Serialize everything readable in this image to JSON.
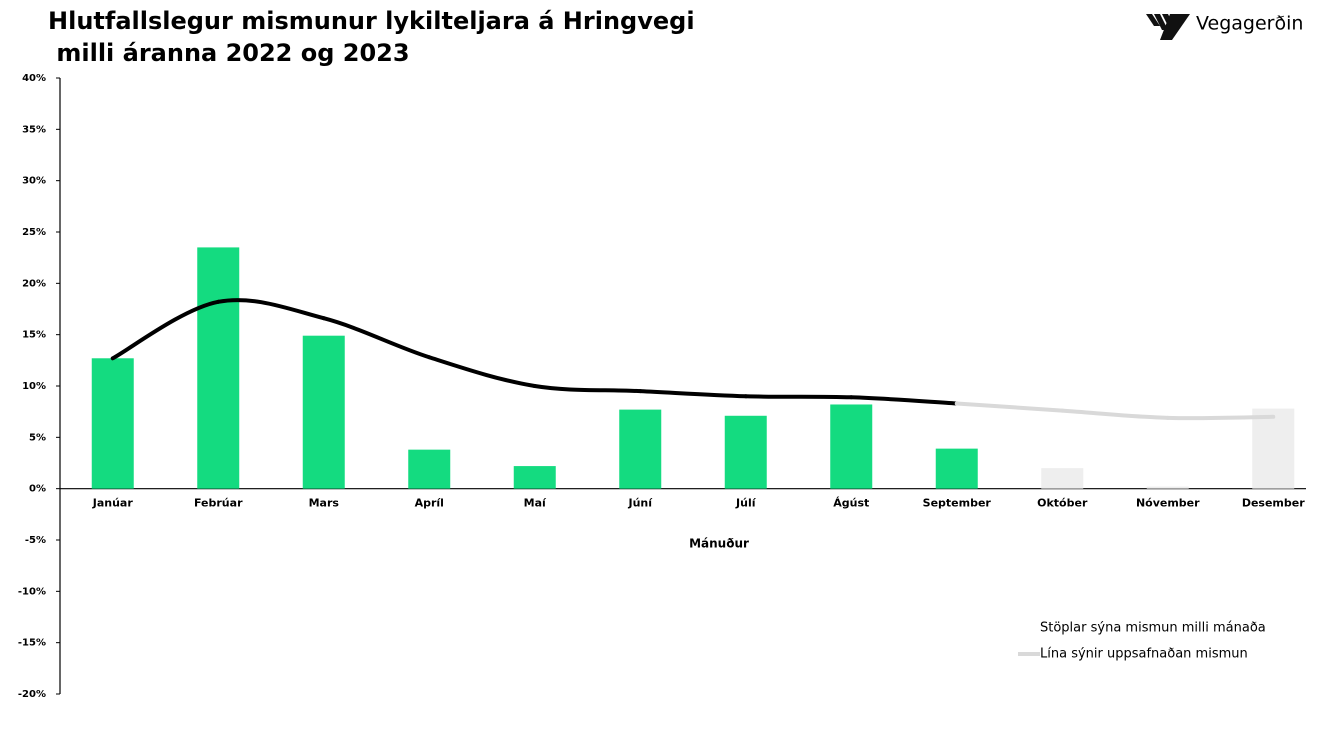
{
  "chart_data": {
    "type": "bar_line",
    "title": [
      "Hlutfallslegur mismunur lykilteljara á Hringvegi",
      " milli áranna 2022 og 2023"
    ],
    "logo": "Vegagerðin",
    "x_label": "Mánuður",
    "categories": [
      "Janúar",
      "Febrúar",
      "Mars",
      "Apríl",
      "Maí",
      "Júní",
      "Júlí",
      "Ágúst",
      "September",
      "Október",
      "Nóvember",
      "Desember"
    ],
    "series": [
      {
        "name": "Stöplar sýna mismun milli mánaða",
        "kind": "bar",
        "values": [
          12.7,
          23.5,
          14.9,
          3.8,
          2.2,
          7.7,
          7.1,
          8.2,
          3.9,
          2.0,
          0.2,
          7.8
        ],
        "colors": [
          "#14db80",
          "#14db80",
          "#14db80",
          "#14db80",
          "#14db80",
          "#14db80",
          "#14db80",
          "#14db80",
          "#14db80",
          "#eeeeee",
          "#eeeeee",
          "#eeeeee"
        ]
      },
      {
        "name": "Lína sýnir uppsafnaðan mismun",
        "kind": "line",
        "color": "#d9d9d9",
        "values": [
          12.7,
          18.2,
          16.6,
          12.8,
          10.0,
          9.5,
          9.0,
          8.9,
          8.3,
          7.6,
          6.9,
          7.0
        ],
        "segment_colors": [
          "#000000",
          "#000000",
          "#000000",
          "#000000",
          "#000000",
          "#000000",
          "#000000",
          "#000000",
          "#000000",
          "#d9d9d9",
          "#d9d9d9",
          "#d9d9d9"
        ]
      }
    ],
    "ylim": [
      -20,
      40
    ],
    "yticks": [
      {
        "value": -20,
        "label": "-20%"
      },
      {
        "value": -15,
        "label": "-15%"
      },
      {
        "value": -10,
        "label": "-10%"
      },
      {
        "value": -5,
        "label": "-5%"
      },
      {
        "value": 0,
        "label": "0%"
      },
      {
        "value": 5,
        "label": "5%"
      },
      {
        "value": 10,
        "label": "10%"
      },
      {
        "value": 15,
        "label": "15%"
      },
      {
        "value": 20,
        "label": "20%"
      },
      {
        "value": 25,
        "label": "25%"
      },
      {
        "value": 30,
        "label": "30%"
      },
      {
        "value": 35,
        "label": "35%"
      },
      {
        "value": 40,
        "label": "40%"
      }
    ],
    "grid": false
  }
}
